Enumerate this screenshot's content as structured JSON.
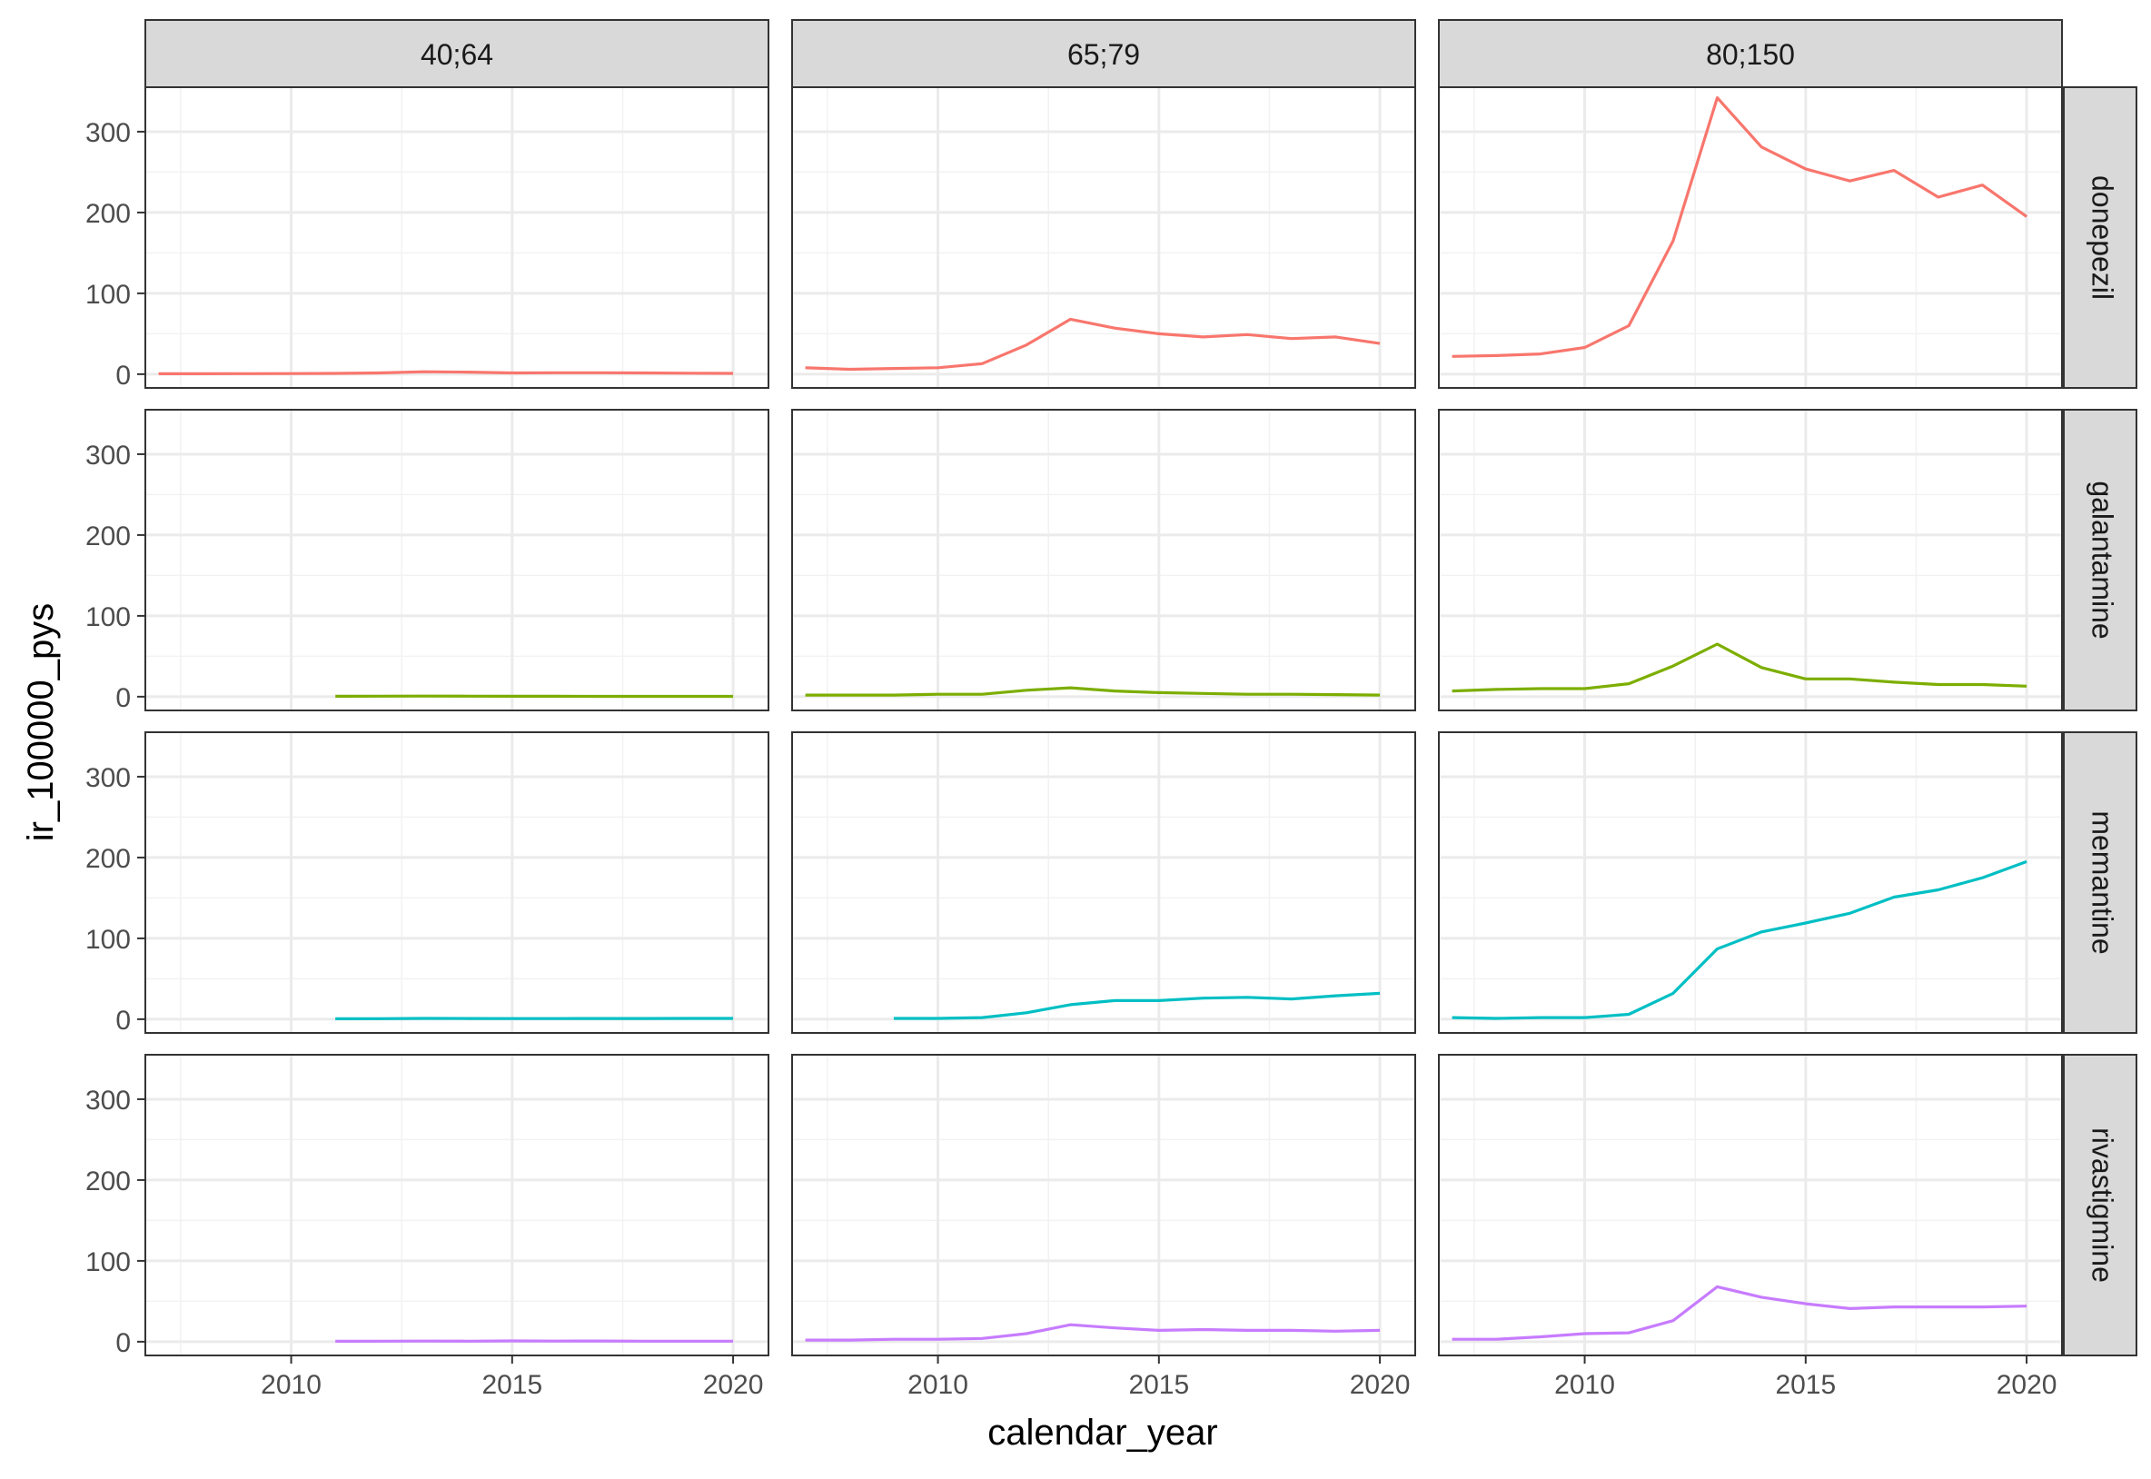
{
  "chart_data": {
    "type": "line",
    "facet_layout": "grid",
    "xlabel": "calendar_year",
    "ylabel": "ir_100000_pys",
    "xlim": [
      2006.7,
      2020.8
    ],
    "ylim": [
      -17,
      355
    ],
    "x_ticks": [
      2010,
      2015,
      2020
    ],
    "y_ticks": [
      0,
      100,
      200,
      300
    ],
    "grid": true,
    "legend": "none",
    "columns": [
      "40;64",
      "65;79",
      "80;150"
    ],
    "rows": [
      {
        "label": "donepezil",
        "color": "#F8766D"
      },
      {
        "label": "galantamine",
        "color": "#7CAE00"
      },
      {
        "label": "memantine",
        "color": "#00BFC4"
      },
      {
        "label": "rivastigmine",
        "color": "#C77CFF"
      }
    ],
    "series": [
      {
        "row": 0,
        "col": 0,
        "x": [
          2007,
          2008,
          2009,
          2010,
          2011,
          2012,
          2013,
          2014,
          2015,
          2016,
          2017,
          2018,
          2019,
          2020
        ],
        "y": [
          0.5,
          0.5,
          0.6,
          0.8,
          1,
          1.5,
          3,
          2.5,
          1.5,
          1.8,
          1.8,
          1.5,
          1.2,
          1
        ]
      },
      {
        "row": 0,
        "col": 1,
        "x": [
          2007,
          2008,
          2009,
          2010,
          2011,
          2012,
          2013,
          2014,
          2015,
          2016,
          2017,
          2018,
          2019,
          2020
        ],
        "y": [
          8,
          6,
          7,
          8,
          13,
          36,
          68,
          57,
          50,
          46,
          49,
          44,
          46,
          38
        ]
      },
      {
        "row": 0,
        "col": 2,
        "x": [
          2007,
          2008,
          2009,
          2010,
          2011,
          2012,
          2013,
          2014,
          2015,
          2016,
          2017,
          2018,
          2019,
          2020
        ],
        "y": [
          22,
          23,
          25,
          33,
          60,
          165,
          342,
          281,
          254,
          239,
          252,
          219,
          234,
          195
        ]
      },
      {
        "row": 1,
        "col": 0,
        "x": [
          2011,
          2012,
          2013,
          2014,
          2015,
          2016,
          2017,
          2018,
          2019,
          2020
        ],
        "y": [
          0.5,
          0.6,
          0.8,
          0.7,
          0.5,
          0.5,
          0.4,
          0.4,
          0.4,
          0.4
        ]
      },
      {
        "row": 1,
        "col": 1,
        "x": [
          2007,
          2008,
          2009,
          2010,
          2011,
          2012,
          2013,
          2014,
          2015,
          2016,
          2017,
          2018,
          2019,
          2020
        ],
        "y": [
          2,
          2,
          2,
          3,
          3,
          8,
          11,
          7,
          5,
          4,
          3,
          3,
          2.5,
          2
        ]
      },
      {
        "row": 1,
        "col": 2,
        "x": [
          2007,
          2008,
          2009,
          2010,
          2011,
          2012,
          2013,
          2014,
          2015,
          2016,
          2017,
          2018,
          2019,
          2020
        ],
        "y": [
          7,
          9,
          10,
          10,
          16,
          38,
          65,
          36,
          22,
          22,
          18,
          15,
          15,
          13
        ]
      },
      {
        "row": 2,
        "col": 0,
        "x": [
          2011,
          2012,
          2013,
          2014,
          2015,
          2016,
          2017,
          2018,
          2019,
          2020
        ],
        "y": [
          0.5,
          0.6,
          1,
          0.9,
          0.8,
          0.8,
          0.9,
          0.9,
          1,
          1
        ]
      },
      {
        "row": 2,
        "col": 1,
        "x": [
          2009,
          2010,
          2011,
          2012,
          2013,
          2014,
          2015,
          2016,
          2017,
          2018,
          2019,
          2020
        ],
        "y": [
          1,
          1,
          2,
          8,
          18,
          23,
          23,
          26,
          27,
          25,
          29,
          32
        ]
      },
      {
        "row": 2,
        "col": 2,
        "x": [
          2007,
          2008,
          2009,
          2010,
          2011,
          2012,
          2013,
          2014,
          2015,
          2016,
          2017,
          2018,
          2019,
          2020
        ],
        "y": [
          2,
          1,
          2,
          2,
          6,
          32,
          87,
          108,
          119,
          131,
          151,
          160,
          175,
          195
        ]
      },
      {
        "row": 3,
        "col": 0,
        "x": [
          2011,
          2012,
          2013,
          2014,
          2015,
          2016,
          2017,
          2018,
          2019,
          2020
        ],
        "y": [
          0.5,
          0.6,
          0.8,
          0.7,
          1,
          0.8,
          0.9,
          0.7,
          0.6,
          0.6
        ]
      },
      {
        "row": 3,
        "col": 1,
        "x": [
          2007,
          2008,
          2009,
          2010,
          2011,
          2012,
          2013,
          2014,
          2015,
          2016,
          2017,
          2018,
          2019,
          2020
        ],
        "y": [
          2,
          2,
          3,
          3,
          4,
          10,
          21,
          17,
          14,
          15,
          14,
          14,
          13,
          14
        ]
      },
      {
        "row": 3,
        "col": 2,
        "x": [
          2007,
          2008,
          2009,
          2010,
          2011,
          2012,
          2013,
          2014,
          2015,
          2016,
          2017,
          2018,
          2019,
          2020
        ],
        "y": [
          3,
          3,
          6,
          10,
          11,
          26,
          68,
          55,
          47,
          41,
          43,
          43,
          43,
          44
        ]
      }
    ]
  }
}
